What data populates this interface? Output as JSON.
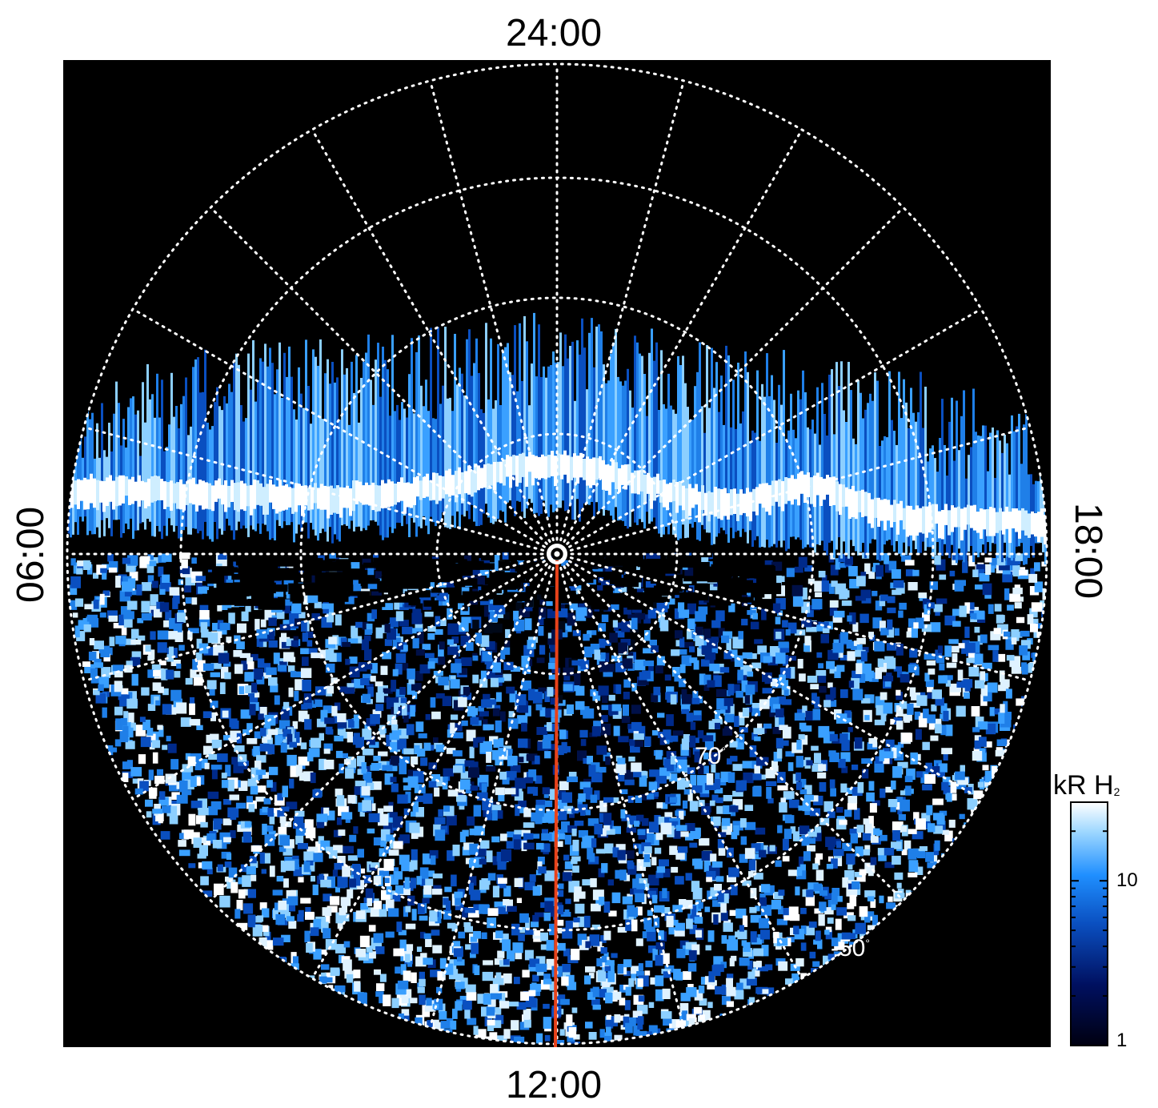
{
  "local_time_labels": {
    "top": "24:00",
    "bottom": "12:00",
    "left": "06:00",
    "right": "18:00"
  },
  "latitude_labels": [
    {
      "value": "70",
      "unit": "°"
    },
    {
      "value": "-50",
      "unit": "°"
    }
  ],
  "colorbar": {
    "title": "kR H",
    "title_subscript": "2",
    "ticks": [
      "10",
      "1"
    ],
    "colors": [
      "#000010",
      "#001060",
      "#0a4fc0",
      "#1f8fff",
      "#9fd8ff",
      "#ffffff"
    ]
  },
  "colors": {
    "background": "#000000",
    "grid": "#ffffff",
    "track": "#e8421a",
    "figure_background": "#ffffff"
  }
}
